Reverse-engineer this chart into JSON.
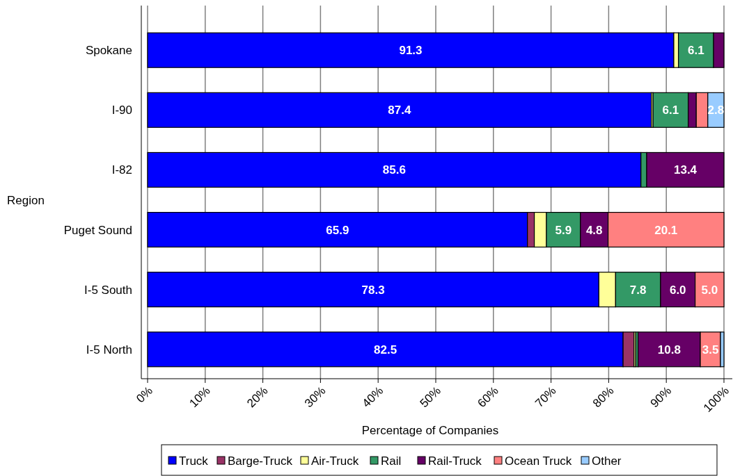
{
  "chart_data": {
    "type": "bar",
    "orientation": "horizontal",
    "stacked": true,
    "xlabel": "Percentage of Companies",
    "ylabel": "Region",
    "categories": [
      "Spokane",
      "I-90",
      "I-82",
      "Puget Sound",
      "I-5 South",
      "I-5 North"
    ],
    "series": [
      {
        "name": "Truck",
        "color": "#0000ff",
        "values": [
          91.3,
          87.4,
          85.6,
          65.9,
          78.3,
          82.5
        ],
        "value_labels": [
          "91.3",
          "87.4",
          "85.6",
          "65.9",
          "78.3",
          "82.5"
        ]
      },
      {
        "name": "Barge-Truck",
        "color": "#993366",
        "values": [
          null,
          null,
          null,
          1.2,
          null,
          1.9
        ]
      },
      {
        "name": "Air-Truck",
        "color": "#ffff99",
        "values": [
          0.8,
          0.3,
          null,
          2.1,
          2.9,
          0.3
        ]
      },
      {
        "name": "Rail",
        "color": "#339966",
        "values": [
          6.1,
          6.1,
          1.0,
          5.9,
          7.8,
          0.4
        ],
        "value_labels": [
          "6.1",
          "6.1",
          null,
          "5.9",
          "7.8",
          null
        ]
      },
      {
        "name": "Rail-Truck",
        "color": "#660066",
        "values": [
          1.8,
          1.4,
          13.4,
          4.8,
          6.0,
          10.8
        ],
        "value_labels": [
          null,
          null,
          "13.4",
          "4.8",
          "6.0",
          "10.8"
        ]
      },
      {
        "name": "Ocean Truck",
        "color": "#ff8080",
        "values": [
          null,
          2.0,
          null,
          20.1,
          5.0,
          3.5
        ],
        "value_labels": [
          null,
          null,
          null,
          "20.1",
          "5.0",
          "3.5"
        ]
      },
      {
        "name": "Other",
        "color": "#99ccff",
        "values": [
          null,
          2.8,
          null,
          null,
          null,
          0.6
        ],
        "value_labels": [
          null,
          "2.8",
          null,
          null,
          null,
          null
        ]
      }
    ],
    "xlim": [
      0,
      100
    ],
    "xticks": [
      {
        "value": 0,
        "label": "0%"
      },
      {
        "value": 10,
        "label": "10%"
      },
      {
        "value": 20,
        "label": "20%"
      },
      {
        "value": 30,
        "label": "30%"
      },
      {
        "value": 40,
        "label": "40%"
      },
      {
        "value": 50,
        "label": "50%"
      },
      {
        "value": 60,
        "label": "60%"
      },
      {
        "value": 70,
        "label": "70%"
      },
      {
        "value": 80,
        "label": "80%"
      },
      {
        "value": 90,
        "label": "90%"
      },
      {
        "value": 100,
        "label": "100%"
      }
    ],
    "grid": "x",
    "legend": "bottom"
  }
}
